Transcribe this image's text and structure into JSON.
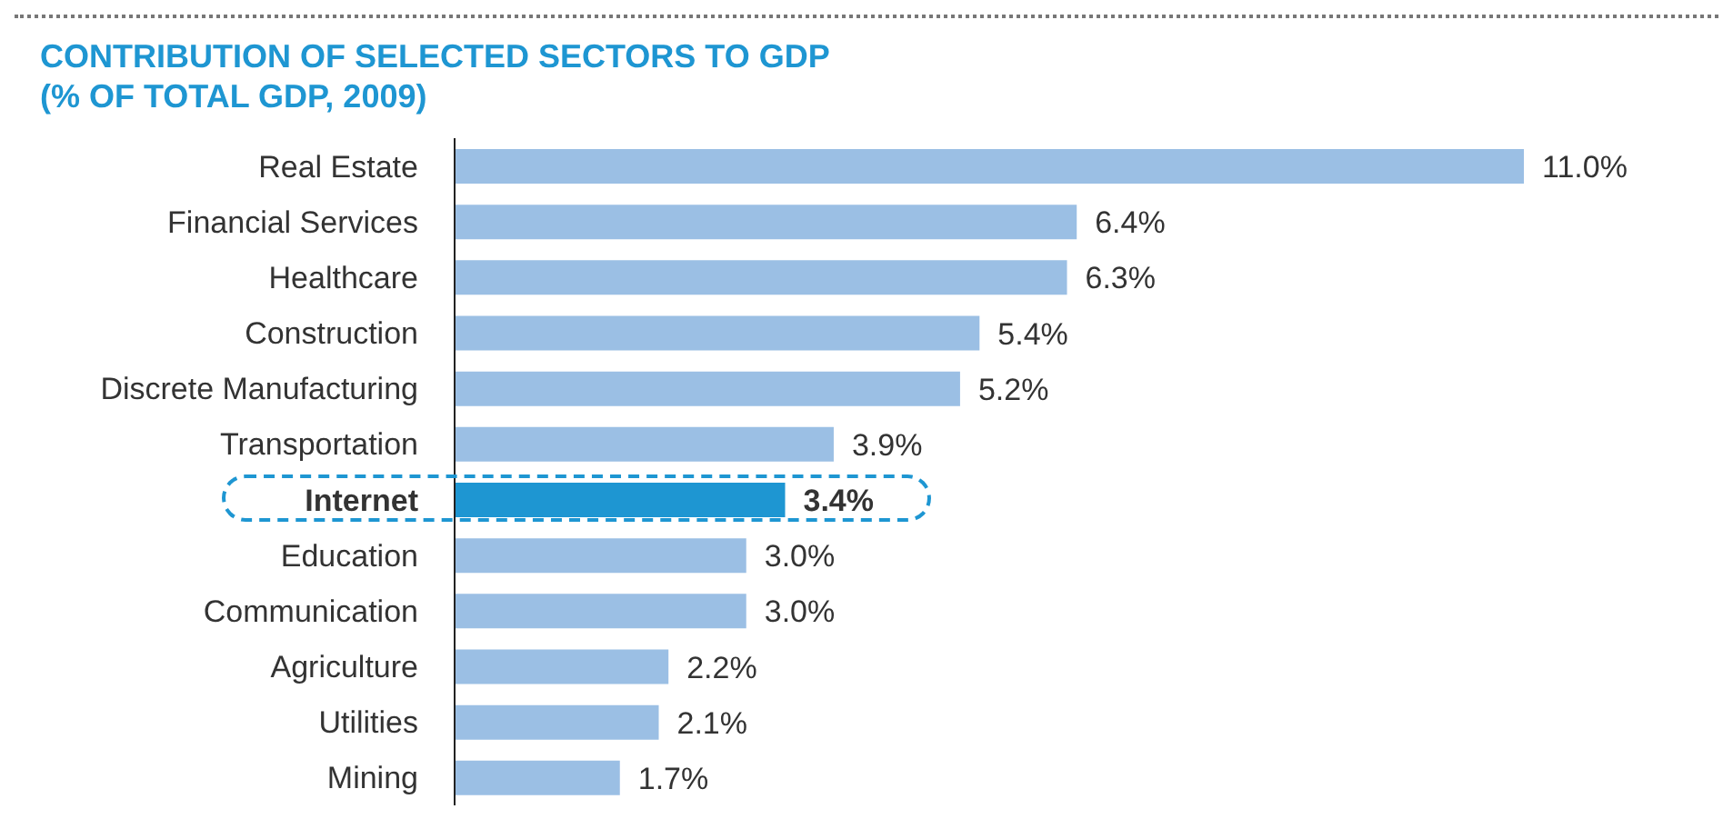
{
  "chart_data": {
    "type": "bar",
    "orientation": "horizontal",
    "title": "CONTRIBUTION OF SELECTED SECTORS TO GDP\n(% OF TOTAL GDP, 2009)",
    "categories": [
      "Real Estate",
      "Financial Services",
      "Healthcare",
      "Construction",
      "Discrete Manufacturing",
      "Transportation",
      "Internet",
      "Education",
      "Communication",
      "Agriculture",
      "Utilities",
      "Mining"
    ],
    "values": [
      11.0,
      6.4,
      6.3,
      5.4,
      5.2,
      3.9,
      3.4,
      3.0,
      3.0,
      2.2,
      2.1,
      1.7
    ],
    "colors": [
      "#9bbfe4",
      "#9bbfe4",
      "#9bbfe4",
      "#9bbfe4",
      "#9bbfe4",
      "#9bbfe4",
      "#1e96d2",
      "#9bbfe4",
      "#9bbfe4",
      "#9bbfe4",
      "#9bbfe4",
      "#9bbfe4"
    ],
    "value_labels": [
      "11.0%",
      "6.4%",
      "6.3%",
      "5.4%",
      "5.2%",
      "3.9%",
      "3.4%",
      "3.0%",
      "3.0%",
      "2.2%",
      "2.1%",
      "1.7%"
    ],
    "grid": false,
    "legend": false
  }
}
